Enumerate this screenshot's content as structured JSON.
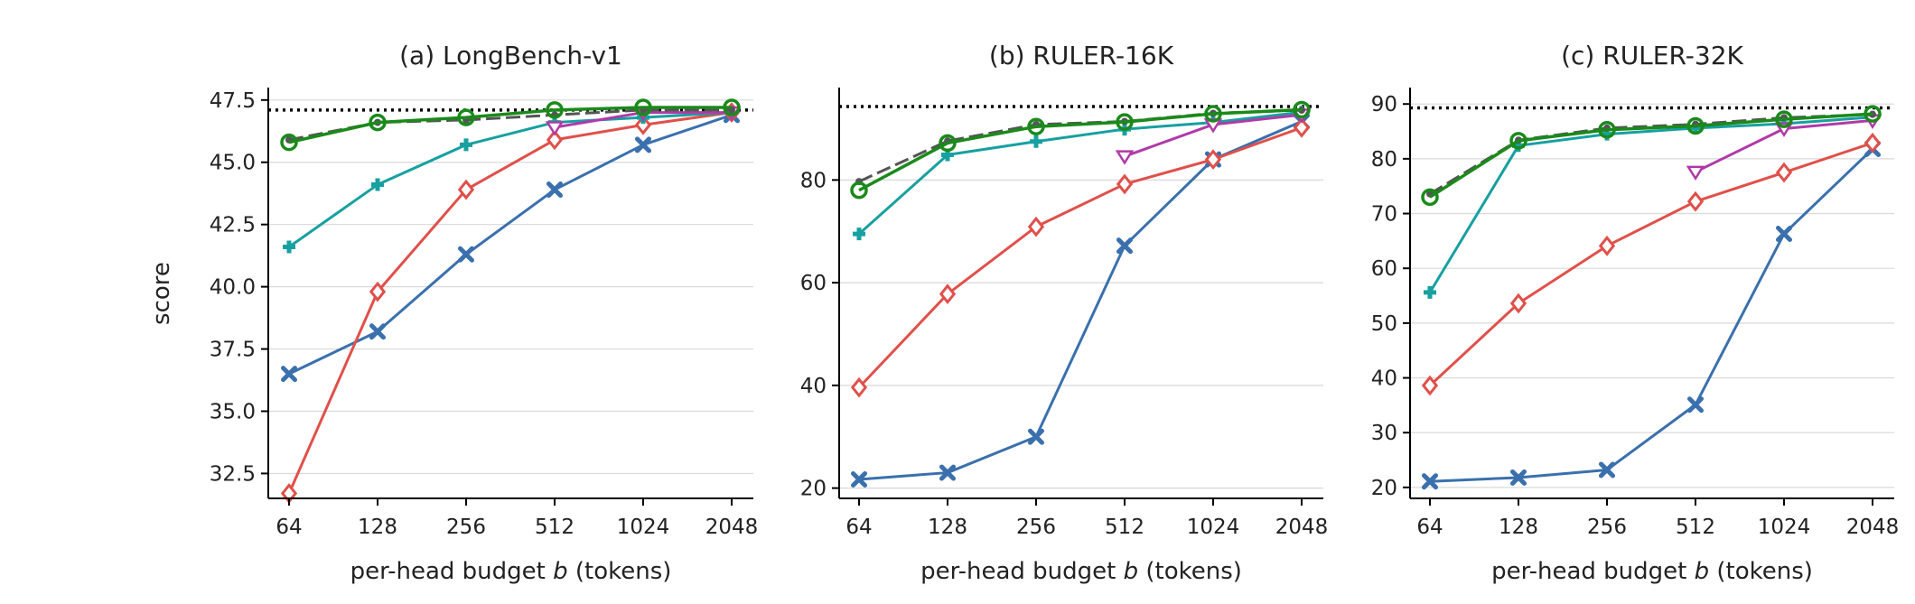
{
  "figure": {
    "shared_ylabel": "score"
  },
  "colors": {
    "blue": "#3a70ad",
    "red": "#e0504a",
    "teal": "#17a0a0",
    "magenta": "#b03aa8",
    "green": "#1a8a1a",
    "gray": "#555555",
    "reference": "#000000",
    "grid": "#d9d9d9"
  },
  "chart_data": [
    {
      "type": "line",
      "title": "(a) LongBench-v1",
      "xlabel_prefix": "per-head budget ",
      "xlabel_var": "b",
      "xlabel_suffix": " (tokens)",
      "ylabel": "score",
      "categories": [
        "64",
        "128",
        "256",
        "512",
        "1024",
        "2048"
      ],
      "ylim": [
        31.5,
        48.0
      ],
      "yticks": [
        32.5,
        35.0,
        37.5,
        40.0,
        42.5,
        45.0,
        47.5
      ],
      "ytick_labels": [
        "32.5",
        "35.0",
        "37.5",
        "40.0",
        "42.5",
        "45.0",
        "47.5"
      ],
      "reference_line": 47.1,
      "grid": "horizontal",
      "series": [
        {
          "color": "blue",
          "marker": "x",
          "values": [
            36.5,
            38.2,
            41.3,
            43.9,
            45.7,
            46.9
          ]
        },
        {
          "color": "red",
          "marker": "diamond",
          "values": [
            31.7,
            39.8,
            43.9,
            45.9,
            46.5,
            47.0
          ]
        },
        {
          "color": "teal",
          "marker": "plus",
          "values": [
            41.6,
            44.1,
            45.7,
            46.6,
            46.8,
            47.0
          ]
        },
        {
          "color": "magenta",
          "marker": "triangle-down",
          "values": [
            null,
            null,
            null,
            46.4,
            47.0,
            47.0
          ]
        },
        {
          "color": "gray",
          "marker": "dot",
          "dashed": true,
          "values": [
            45.9,
            46.6,
            46.7,
            46.9,
            47.1,
            47.1
          ]
        },
        {
          "color": "green",
          "marker": "circle",
          "values": [
            45.8,
            46.6,
            46.8,
            47.1,
            47.2,
            47.2
          ]
        }
      ]
    },
    {
      "type": "line",
      "title": "(b) RULER-16K",
      "xlabel_prefix": "per-head budget ",
      "xlabel_var": "b",
      "xlabel_suffix": " (tokens)",
      "categories": [
        "64",
        "128",
        "256",
        "512",
        "1024",
        "2048"
      ],
      "ylim": [
        18,
        98
      ],
      "yticks": [
        20,
        40,
        60,
        80
      ],
      "ytick_labels": [
        "20",
        "40",
        "60",
        "80"
      ],
      "reference_line": 94.3,
      "grid": "horizontal",
      "series": [
        {
          "color": "blue",
          "marker": "x",
          "values": [
            21.7,
            23.0,
            30.0,
            67.2,
            84.0,
            91.4
          ]
        },
        {
          "color": "red",
          "marker": "diamond",
          "values": [
            39.6,
            57.8,
            70.9,
            79.2,
            84.0,
            90.2
          ]
        },
        {
          "color": "teal",
          "marker": "plus",
          "values": [
            69.5,
            84.9,
            87.5,
            89.9,
            91.2,
            93.2
          ]
        },
        {
          "color": "magenta",
          "marker": "triangle-down",
          "values": [
            null,
            null,
            null,
            84.6,
            90.8,
            92.7
          ]
        },
        {
          "color": "gray",
          "marker": "dot",
          "dashed": true,
          "values": [
            79.7,
            87.6,
            90.8,
            91.4,
            93.0,
            93.6
          ]
        },
        {
          "color": "green",
          "marker": "circle",
          "values": [
            78.0,
            87.2,
            90.4,
            91.3,
            92.9,
            93.7
          ]
        }
      ]
    },
    {
      "type": "line",
      "title": "(c) RULER-32K",
      "xlabel_prefix": "per-head budget ",
      "xlabel_var": "b",
      "xlabel_suffix": " (tokens)",
      "categories": [
        "64",
        "128",
        "256",
        "512",
        "1024",
        "2048"
      ],
      "ylim": [
        18,
        93
      ],
      "yticks": [
        20,
        30,
        40,
        50,
        60,
        70,
        80,
        90
      ],
      "ytick_labels": [
        "20",
        "30",
        "40",
        "50",
        "60",
        "70",
        "80",
        "90"
      ],
      "reference_line": 89.3,
      "grid": "horizontal",
      "series": [
        {
          "color": "blue",
          "marker": "x",
          "values": [
            21.1,
            21.8,
            23.2,
            35.1,
            66.3,
            81.8
          ]
        },
        {
          "color": "red",
          "marker": "diamond",
          "values": [
            38.6,
            53.6,
            64.1,
            72.2,
            77.5,
            82.9
          ]
        },
        {
          "color": "teal",
          "marker": "plus",
          "values": [
            55.6,
            82.4,
            84.5,
            85.6,
            86.4,
            87.6
          ]
        },
        {
          "color": "magenta",
          "marker": "triangle-down",
          "values": [
            null,
            null,
            null,
            77.6,
            85.5,
            87.0
          ]
        },
        {
          "color": "gray",
          "marker": "dot",
          "dashed": true,
          "values": [
            73.6,
            83.4,
            85.6,
            86.3,
            87.5,
            88.1
          ]
        },
        {
          "color": "green",
          "marker": "circle",
          "values": [
            73.0,
            83.3,
            85.3,
            86.0,
            87.2,
            88.2
          ]
        }
      ]
    }
  ]
}
